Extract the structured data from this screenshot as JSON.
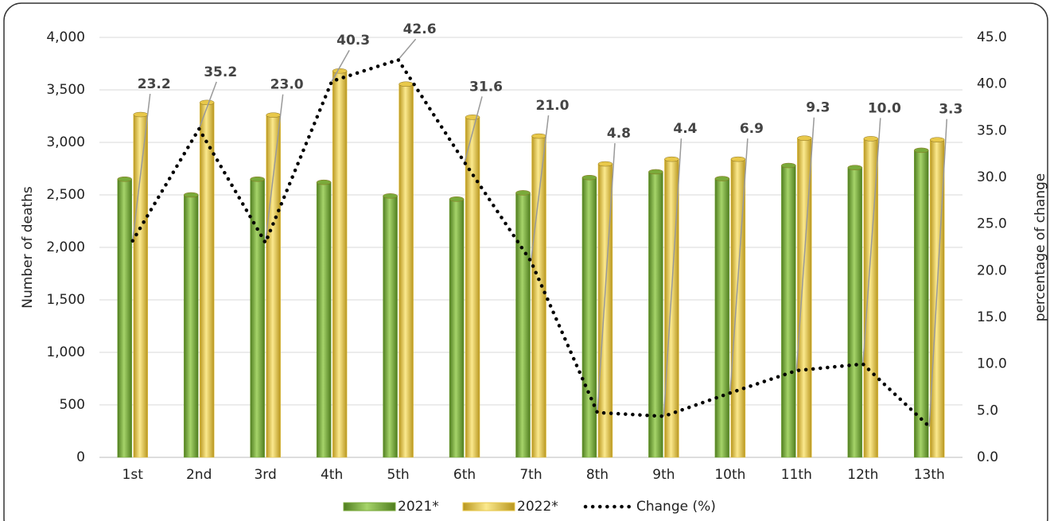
{
  "chart_data": {
    "type": "bar-line",
    "ylabel": "Number of deaths",
    "y2label": "percentage of change",
    "categories": [
      "1st",
      "2nd",
      "3rd",
      "4th",
      "5th",
      "6th",
      "7th",
      "8th",
      "9th",
      "10th",
      "11th",
      "12th",
      "13th"
    ],
    "series": [
      {
        "name": "2021*",
        "type": "bar",
        "color": "#7aaa3a",
        "values": [
          2650,
          2500,
          2650,
          2620,
          2490,
          2460,
          2520,
          2665,
          2720,
          2655,
          2780,
          2760,
          2925
        ]
      },
      {
        "name": "2022*",
        "type": "bar",
        "color": "#e8c84a",
        "values": [
          3265,
          3380,
          3260,
          3680,
          3555,
          3240,
          3060,
          2795,
          2840,
          2840,
          3040,
          3035,
          3025
        ]
      },
      {
        "name": "Change (%)",
        "type": "line",
        "axis": "y2",
        "color": "#000000",
        "values": [
          23.2,
          35.2,
          23.0,
          40.3,
          42.6,
          31.6,
          21.0,
          4.8,
          4.4,
          6.9,
          9.3,
          10.0,
          3.3
        ],
        "value_labels": [
          "23.2",
          "35.2",
          "23.0",
          "40.3",
          "42.6",
          "31.6",
          "21.0",
          "4.8",
          "4.4",
          "6.9",
          "9.3",
          "10.0",
          "3.3"
        ]
      }
    ],
    "ylim": [
      0,
      4000
    ],
    "yticks": [
      0,
      500,
      {
        "value": 1000,
        "label": "1,000"
      },
      {
        "value": 1500,
        "label": "1,500"
      },
      {
        "value": 2000,
        "label": "2,000"
      },
      {
        "value": 2500,
        "label": "2,500"
      },
      {
        "value": 3000,
        "label": "3,000"
      },
      {
        "value": 3500,
        "label": "3,500"
      },
      {
        "value": 4000,
        "label": "4,000"
      }
    ],
    "y2lim": [
      0,
      45
    ],
    "y2ticks": [
      {
        "value": 0,
        "label": "0.0"
      },
      {
        "value": 5,
        "label": "5.0"
      },
      {
        "value": 10,
        "label": "10.0"
      },
      {
        "value": 15,
        "label": "15.0"
      },
      {
        "value": 20,
        "label": "20.0"
      },
      {
        "value": 25,
        "label": "25.0"
      },
      {
        "value": 30,
        "label": "30.0"
      },
      {
        "value": 35,
        "label": "35.0"
      },
      {
        "value": 40,
        "label": "40.0"
      },
      {
        "value": 45,
        "label": "45.0"
      }
    ],
    "grid": true,
    "legend": "bottom"
  }
}
